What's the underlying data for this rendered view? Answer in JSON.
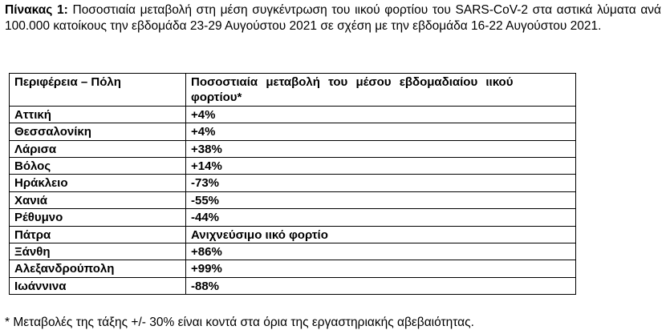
{
  "caption": {
    "label": "Πίνακας 1:",
    "text": " Ποσοστιαία μεταβολή στη μέση συγκέντρωση του ιικού φορτίου του SARS-CoV-2 στα αστικά λύματα ανά 100.000 κατοίκους την εβδομάδα 23-29 Αυγούστου 2021 σε σχέση με την εβδομάδα 16-22 Αυγούστου 2021."
  },
  "table": {
    "headers": {
      "region": "Περιφέρεια – Πόλη",
      "change": "Ποσοστιαία μεταβολή του μέσου εβδομαδιαίου ιικού φορτίου*"
    },
    "rows": [
      {
        "region": "Αττική",
        "change": "+4%"
      },
      {
        "region": "Θεσσαλονίκη",
        "change": "+4%"
      },
      {
        "region": "Λάρισα",
        "change": "+38%"
      },
      {
        "region": "Βόλος",
        "change": "+14%"
      },
      {
        "region": "Ηράκλειο",
        "change": "-73%"
      },
      {
        "region": "Χανιά",
        "change": "-55%"
      },
      {
        "region": "Ρέθυμνο",
        "change": "-44%"
      },
      {
        "region": "Πάτρα",
        "change": "Ανιχνεύσιμο ιικό φορτίο"
      },
      {
        "region": "Ξάνθη",
        "change": "+86%"
      },
      {
        "region": "Αλεξανδρούπολη",
        "change": "+99%"
      },
      {
        "region": "Ιωάννινα",
        "change": "-88%"
      }
    ]
  },
  "footnote": "* Μεταβολές της τάξης +/- 30% είναι κοντά στα όρια της εργαστηριακής αβεβαιότητας."
}
